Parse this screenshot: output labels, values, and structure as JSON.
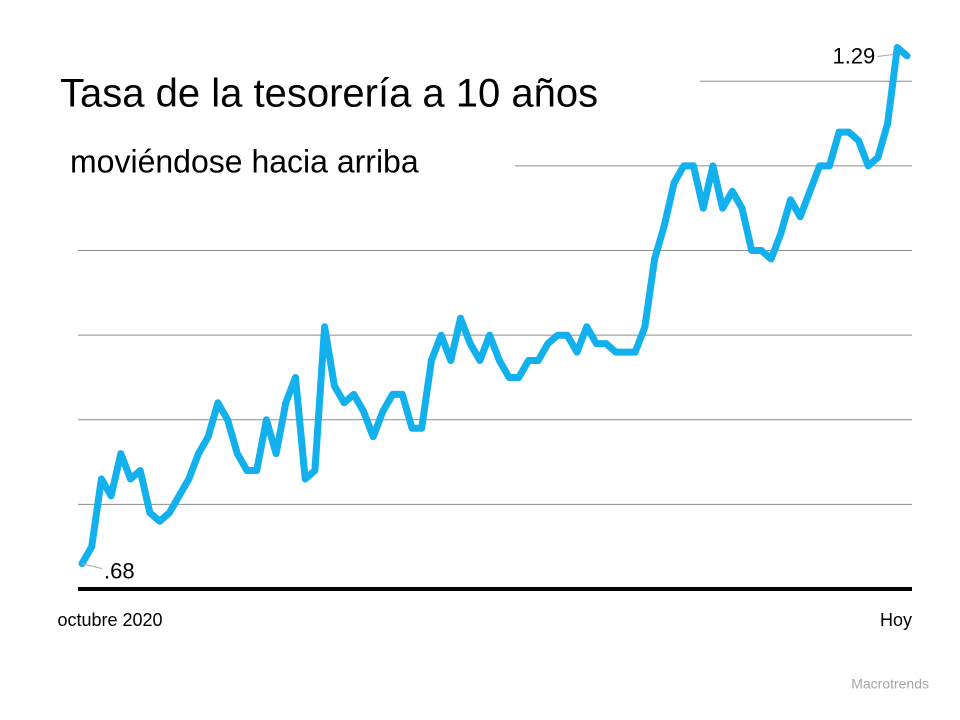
{
  "chart_data": {
    "type": "line",
    "title": "Tasa de la tesorería a 10 años",
    "subtitle": "moviéndose hacia arriba",
    "source": "Macrotrends",
    "categories": [
      "octubre 2020",
      null,
      null,
      null,
      null,
      null,
      null,
      null,
      null,
      null,
      null,
      null,
      null,
      null,
      null,
      null,
      null,
      null,
      null,
      null,
      null,
      null,
      null,
      null,
      null,
      null,
      null,
      null,
      null,
      null,
      null,
      null,
      null,
      null,
      null,
      null,
      null,
      null,
      null,
      null,
      null,
      null,
      null,
      null,
      null,
      null,
      null,
      null,
      null,
      null,
      null,
      null,
      null,
      null,
      null,
      null,
      null,
      null,
      null,
      null,
      null,
      null,
      null,
      null,
      null,
      null,
      null,
      null,
      null,
      null,
      null,
      null,
      null,
      null,
      null,
      null,
      null,
      null,
      null,
      null,
      null,
      null,
      null,
      null,
      null,
      "Hoy"
    ],
    "values": [
      0.68,
      0.7,
      0.78,
      0.76,
      0.81,
      0.78,
      0.79,
      0.74,
      0.73,
      0.74,
      0.76,
      0.78,
      0.81,
      0.83,
      0.87,
      0.85,
      0.81,
      0.79,
      0.79,
      0.85,
      0.81,
      0.87,
      0.9,
      0.78,
      0.79,
      0.96,
      0.89,
      0.87,
      0.88,
      0.86,
      0.83,
      0.86,
      0.88,
      0.88,
      0.84,
      0.84,
      0.92,
      0.95,
      0.92,
      0.97,
      0.94,
      0.92,
      0.95,
      0.92,
      0.9,
      0.9,
      0.92,
      0.92,
      0.94,
      0.95,
      0.95,
      0.93,
      0.96,
      0.94,
      0.94,
      0.93,
      0.93,
      0.93,
      0.96,
      1.04,
      1.08,
      1.13,
      1.15,
      1.15,
      1.1,
      1.15,
      1.1,
      1.12,
      1.1,
      1.05,
      1.05,
      1.04,
      1.07,
      1.11,
      1.09,
      1.12,
      1.15,
      1.15,
      1.19,
      1.19,
      1.18,
      1.15,
      1.16,
      1.2,
      1.29,
      1.28
    ],
    "value_labels": [
      ".68",
      null,
      null,
      null,
      null,
      null,
      null,
      null,
      null,
      null,
      null,
      null,
      null,
      null,
      null,
      null,
      null,
      null,
      null,
      null,
      null,
      null,
      null,
      null,
      null,
      null,
      null,
      null,
      null,
      null,
      null,
      null,
      null,
      null,
      null,
      null,
      null,
      null,
      null,
      null,
      null,
      null,
      null,
      null,
      null,
      null,
      null,
      null,
      null,
      null,
      null,
      null,
      null,
      null,
      null,
      null,
      null,
      null,
      null,
      null,
      null,
      null,
      null,
      null,
      null,
      null,
      null,
      null,
      null,
      null,
      null,
      null,
      null,
      null,
      null,
      null,
      null,
      null,
      null,
      null,
      null,
      null,
      null,
      null,
      "1.29",
      null
    ],
    "color": "#12b0ec",
    "ylim": [
      0.65,
      1.3
    ],
    "yticks": [
      0.65,
      0.75,
      0.85,
      0.95,
      1.05,
      1.15,
      1.25
    ],
    "grid": true
  }
}
